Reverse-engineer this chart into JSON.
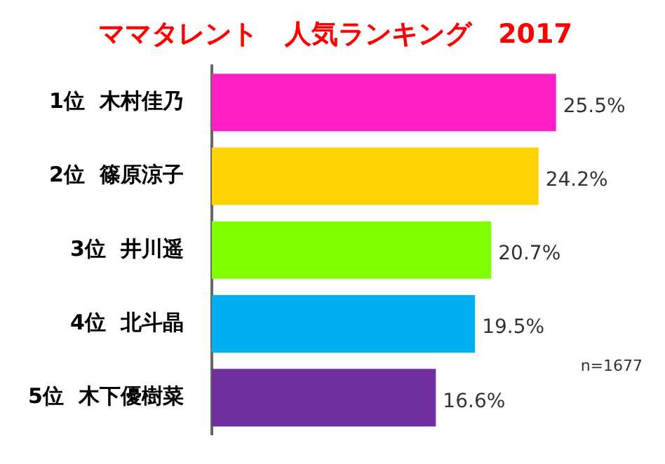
{
  "chart_data": {
    "type": "bar",
    "orientation": "horizontal",
    "title": "ママタレント　人気ランキング　2017",
    "categories": [
      "1位  木村佳乃",
      "2位  篠原涼子",
      "3位  井川遥",
      "4位  北斗晶",
      "5位  木下優樹菜"
    ],
    "values": [
      25.5,
      24.2,
      20.7,
      19.5,
      16.6
    ],
    "colors": [
      "#ff1fc7",
      "#ffd300",
      "#7fff00",
      "#00b0f0",
      "#7030a0"
    ],
    "value_labels": [
      "25.5%",
      "24.2%",
      "20.7%",
      "19.5%",
      "16.6%"
    ],
    "annotations": [
      "n=1677"
    ],
    "legend": false
  }
}
